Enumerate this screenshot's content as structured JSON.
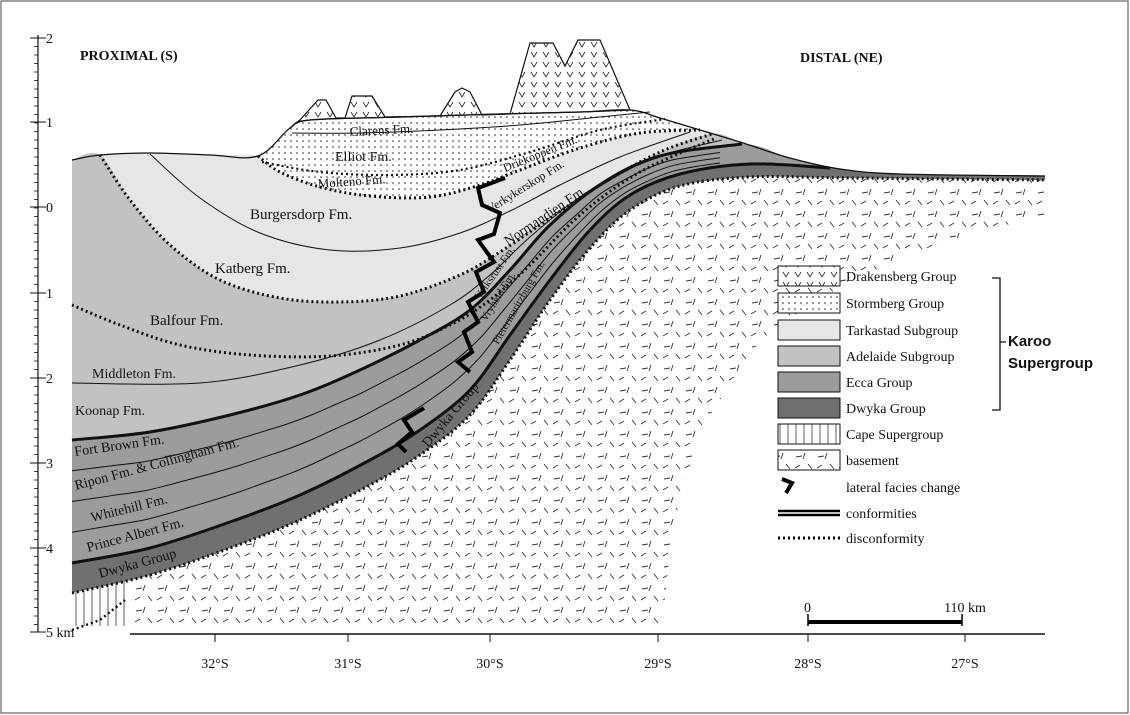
{
  "header": {
    "left": "PROXIMAL (S)",
    "right": "DISTAL (NE)"
  },
  "depth_axis": {
    "labels": [
      "2",
      "1",
      "0",
      "1",
      "2",
      "3",
      "4",
      "5 km"
    ]
  },
  "latitude_axis": {
    "labels": [
      "32°S",
      "31°S",
      "30°S",
      "29°S",
      "28°S",
      "27°S"
    ]
  },
  "formations": [
    "Clarens Fm.",
    "Elliot Fm.",
    "Molteno Fm.",
    "Driekoppen Fm.",
    "Verkykerskop Fm.",
    "Normandien Fm.",
    "Burgersdorp Fm.",
    "Katberg Fm.",
    "Balfour Fm.",
    "Volksrust Fm.",
    "Vryheid Fm.",
    "Pietermaritzburg Fm.",
    "Middleton Fm.",
    "Koonap Fm.",
    "Fort Brown Fm.",
    "Ripon Fm.  &  Collingham Fm.",
    "Whitehill Fm.",
    "Prince Albert Fm.",
    "Dwyka Group",
    "Dwyka Group"
  ],
  "legend": {
    "items": [
      "Drakensberg Group",
      "Stormberg Group",
      "Tarkastad Subgroup",
      "Adelaide Subgroup",
      "Ecca Group",
      "Dwyka Group",
      "Cape Supergroup",
      "basement",
      "lateral facies change",
      "conformities",
      "disconformity"
    ],
    "bracket_label": [
      "Karoo",
      "Supergroup"
    ]
  },
  "scale_bar": {
    "start": "0",
    "end": "110 km"
  }
}
